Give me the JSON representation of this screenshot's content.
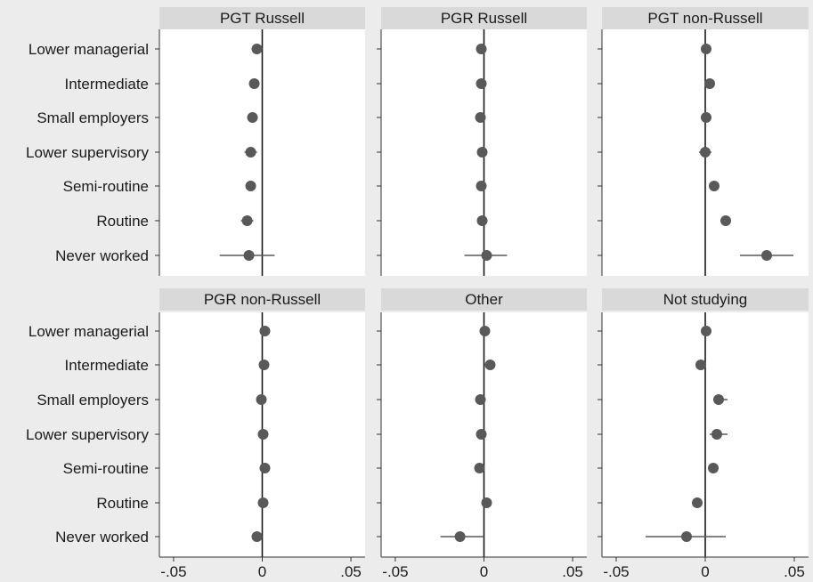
{
  "chart_data": {
    "type": "scatter",
    "subtype": "coefficient-plot-with-confidence-intervals",
    "layout": "2x3 facets",
    "categories": [
      "Lower managerial",
      "Intermediate",
      "Small employers",
      "Lower supervisory",
      "Semi-routine",
      "Routine",
      "Never worked"
    ],
    "x_ticks": [
      {
        "value": -0.05,
        "label": "-.05"
      },
      {
        "value": 0,
        "label": "0"
      },
      {
        "value": 0.05,
        "label": ".05"
      }
    ],
    "xlim": [
      -0.058,
      0.058
    ],
    "reference_line": 0,
    "grid": false,
    "colors": {
      "marker": "#595959",
      "ci_line": "#595959",
      "reference_line": "#1a1a1a",
      "panel_title_bg": "#d9d9d9",
      "outer_bg": "#ececec",
      "panel_bg": "#ffffff"
    },
    "panels": [
      {
        "title": "PGT Russell",
        "estimates": [
          {
            "value": -0.003,
            "ci": [
              -0.006,
              -0.0005
            ]
          },
          {
            "value": -0.0045,
            "ci": [
              -0.007,
              -0.002
            ]
          },
          {
            "value": -0.0055,
            "ci": [
              -0.0085,
              -0.0025
            ]
          },
          {
            "value": -0.0065,
            "ci": [
              -0.01,
              -0.003
            ]
          },
          {
            "value": -0.0065,
            "ci": [
              -0.009,
              -0.004
            ]
          },
          {
            "value": -0.0085,
            "ci": [
              -0.012,
              -0.005
            ]
          },
          {
            "value": -0.0075,
            "ci": [
              -0.024,
              0.007
            ]
          }
        ]
      },
      {
        "title": "PGR Russell",
        "estimates": [
          {
            "value": -0.0015,
            "ci": [
              -0.003,
              0.0
            ]
          },
          {
            "value": -0.0015,
            "ci": [
              -0.003,
              0.0
            ]
          },
          {
            "value": -0.002,
            "ci": [
              -0.0035,
              -0.0005
            ]
          },
          {
            "value": -0.001,
            "ci": [
              -0.0025,
              0.0005
            ]
          },
          {
            "value": -0.0015,
            "ci": [
              -0.003,
              0.0
            ]
          },
          {
            "value": -0.001,
            "ci": [
              -0.0025,
              0.0005
            ]
          },
          {
            "value": 0.0015,
            "ci": [
              -0.011,
              0.013
            ]
          }
        ]
      },
      {
        "title": "PGT non-Russell",
        "estimates": [
          {
            "value": 0.0005,
            "ci": [
              -0.0015,
              0.0025
            ]
          },
          {
            "value": 0.0025,
            "ci": [
              0.0,
              0.005
            ]
          },
          {
            "value": 0.0005,
            "ci": [
              -0.0025,
              0.0035
            ]
          },
          {
            "value": 0.0,
            "ci": [
              -0.0035,
              0.0035
            ]
          },
          {
            "value": 0.005,
            "ci": [
              0.0025,
              0.0075
            ]
          },
          {
            "value": 0.0115,
            "ci": [
              0.0085,
              0.0145
            ]
          },
          {
            "value": 0.0345,
            "ci": [
              0.0195,
              0.0495
            ]
          }
        ]
      },
      {
        "title": "PGR non-Russell",
        "estimates": [
          {
            "value": 0.0015,
            "ci": [
              0.0005,
              0.0025
            ]
          },
          {
            "value": 0.001,
            "ci": [
              0.0,
              0.002
            ]
          },
          {
            "value": -0.0005,
            "ci": [
              -0.0015,
              0.0005
            ]
          },
          {
            "value": 0.0005,
            "ci": [
              -0.0005,
              0.0015
            ]
          },
          {
            "value": 0.0015,
            "ci": [
              0.0005,
              0.0025
            ]
          },
          {
            "value": 0.0005,
            "ci": [
              -0.0005,
              0.0015
            ]
          },
          {
            "value": -0.003,
            "ci": [
              -0.0045,
              -0.0015
            ]
          }
        ]
      },
      {
        "title": "Other",
        "estimates": [
          {
            "value": 0.0005,
            "ci": [
              -0.0005,
              0.0015
            ]
          },
          {
            "value": 0.0035,
            "ci": [
              0.0025,
              0.0045
            ]
          },
          {
            "value": -0.002,
            "ci": [
              -0.0035,
              -0.0005
            ]
          },
          {
            "value": -0.0015,
            "ci": [
              -0.0045,
              0.0015
            ]
          },
          {
            "value": -0.0025,
            "ci": [
              -0.004,
              -0.001
            ]
          },
          {
            "value": 0.0015,
            "ci": [
              0.0,
              0.003
            ]
          },
          {
            "value": -0.0135,
            "ci": [
              -0.0245,
              -0.0005
            ]
          }
        ]
      },
      {
        "title": "Not studying",
        "estimates": [
          {
            "value": 0.0005,
            "ci": [
              -0.0005,
              0.0015
            ]
          },
          {
            "value": -0.0025,
            "ci": [
              -0.0045,
              -0.0005
            ]
          },
          {
            "value": 0.0075,
            "ci": [
              0.0045,
              0.0125
            ]
          },
          {
            "value": 0.0065,
            "ci": [
              0.0025,
              0.0125
            ]
          },
          {
            "value": 0.0045,
            "ci": [
              0.0015,
              0.0075
            ]
          },
          {
            "value": -0.0045,
            "ci": [
              -0.0075,
              -0.0015
            ]
          },
          {
            "value": -0.0105,
            "ci": [
              -0.0335,
              0.0115
            ]
          }
        ]
      }
    ]
  }
}
